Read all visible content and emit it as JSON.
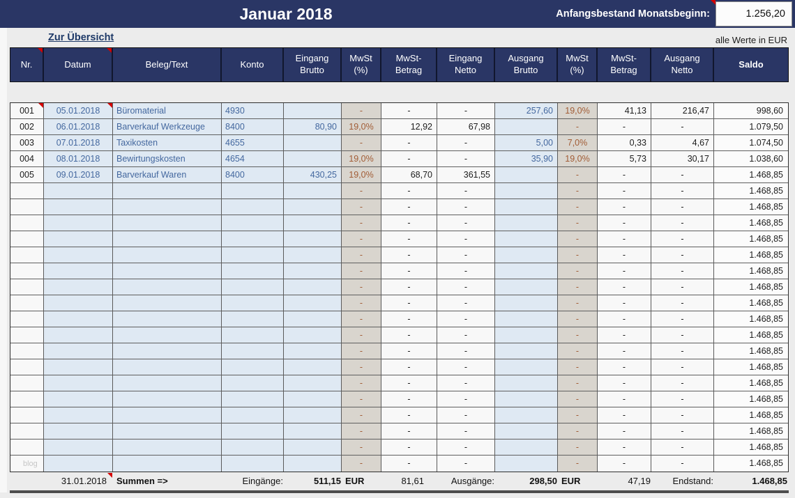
{
  "topbar": {
    "title": "Januar 2018",
    "label": "Anfangsbestand Monatsbeginn:",
    "value": "1.256,20"
  },
  "subheader": {
    "link": "Zur Übersicht",
    "note": "alle Werte in EUR"
  },
  "table": {
    "columns": [
      {
        "key": "nr",
        "label": "Nr."
      },
      {
        "key": "datum",
        "label": "Datum"
      },
      {
        "key": "beleg",
        "label": "Beleg/Text"
      },
      {
        "key": "konto",
        "label": "Konto"
      },
      {
        "key": "eingang_brutto",
        "label": "Eingang\nBrutto"
      },
      {
        "key": "mwst_ein",
        "label": "MwSt\n(%)"
      },
      {
        "key": "mwst_betrag_ein",
        "label": "MwSt-\nBetrag"
      },
      {
        "key": "eingang_netto",
        "label": "Eingang\nNetto"
      },
      {
        "key": "ausgang_brutto",
        "label": "Ausgang\nBrutto"
      },
      {
        "key": "mwst_aus",
        "label": "MwSt\n(%)"
      },
      {
        "key": "mwst_betrag_aus",
        "label": "MwSt-\nBetrag"
      },
      {
        "key": "ausgang_netto",
        "label": "Ausgang\nNetto"
      },
      {
        "key": "saldo",
        "label": "Saldo"
      }
    ],
    "rows": [
      {
        "nr": "001",
        "datum": "05.01.2018",
        "beleg": "Büromaterial",
        "konto": "4930",
        "eingang_brutto": "",
        "mwst_ein": "-",
        "mwst_betrag_ein": "-",
        "eingang_netto": "-",
        "ausgang_brutto": "257,60",
        "mwst_aus": "19,0%",
        "mwst_betrag_aus": "41,13",
        "ausgang_netto": "216,47",
        "saldo": "998,60"
      },
      {
        "nr": "002",
        "datum": "06.01.2018",
        "beleg": "Barverkauf Werkzeuge",
        "konto": "8400",
        "eingang_brutto": "80,90",
        "mwst_ein": "19,0%",
        "mwst_betrag_ein": "12,92",
        "eingang_netto": "67,98",
        "ausgang_brutto": "",
        "mwst_aus": "-",
        "mwst_betrag_aus": "-",
        "ausgang_netto": "-",
        "saldo": "1.079,50"
      },
      {
        "nr": "003",
        "datum": "07.01.2018",
        "beleg": "Taxikosten",
        "konto": "4655",
        "eingang_brutto": "",
        "mwst_ein": "-",
        "mwst_betrag_ein": "-",
        "eingang_netto": "-",
        "ausgang_brutto": "5,00",
        "mwst_aus": "7,0%",
        "mwst_betrag_aus": "0,33",
        "ausgang_netto": "4,67",
        "saldo": "1.074,50"
      },
      {
        "nr": "004",
        "datum": "08.01.2018",
        "beleg": "Bewirtungskosten",
        "konto": "4654",
        "eingang_brutto": "",
        "mwst_ein": "19,0%",
        "mwst_betrag_ein": "-",
        "eingang_netto": "-",
        "ausgang_brutto": "35,90",
        "mwst_aus": "19,0%",
        "mwst_betrag_aus": "5,73",
        "ausgang_netto": "30,17",
        "saldo": "1.038,60"
      },
      {
        "nr": "005",
        "datum": "09.01.2018",
        "beleg": "Barverkauf Waren",
        "konto": "8400",
        "eingang_brutto": "430,25",
        "mwst_ein": "19,0%",
        "mwst_betrag_ein": "68,70",
        "eingang_netto": "361,55",
        "ausgang_brutto": "",
        "mwst_aus": "-",
        "mwst_betrag_aus": "-",
        "ausgang_netto": "-",
        "saldo": "1.468,85"
      },
      {
        "nr": "",
        "datum": "",
        "beleg": "",
        "konto": "",
        "eingang_brutto": "",
        "mwst_ein": "-",
        "mwst_betrag_ein": "-",
        "eingang_netto": "-",
        "ausgang_brutto": "",
        "mwst_aus": "-",
        "mwst_betrag_aus": "-",
        "ausgang_netto": "-",
        "saldo": "1.468,85"
      },
      {
        "nr": "",
        "datum": "",
        "beleg": "",
        "konto": "",
        "eingang_brutto": "",
        "mwst_ein": "-",
        "mwst_betrag_ein": "-",
        "eingang_netto": "-",
        "ausgang_brutto": "",
        "mwst_aus": "-",
        "mwst_betrag_aus": "-",
        "ausgang_netto": "-",
        "saldo": "1.468,85"
      },
      {
        "nr": "",
        "datum": "",
        "beleg": "",
        "konto": "",
        "eingang_brutto": "",
        "mwst_ein": "-",
        "mwst_betrag_ein": "-",
        "eingang_netto": "-",
        "ausgang_brutto": "",
        "mwst_aus": "-",
        "mwst_betrag_aus": "-",
        "ausgang_netto": "-",
        "saldo": "1.468,85"
      },
      {
        "nr": "",
        "datum": "",
        "beleg": "",
        "konto": "",
        "eingang_brutto": "",
        "mwst_ein": "-",
        "mwst_betrag_ein": "-",
        "eingang_netto": "-",
        "ausgang_brutto": "",
        "mwst_aus": "-",
        "mwst_betrag_aus": "-",
        "ausgang_netto": "-",
        "saldo": "1.468,85"
      },
      {
        "nr": "",
        "datum": "",
        "beleg": "",
        "konto": "",
        "eingang_brutto": "",
        "mwst_ein": "-",
        "mwst_betrag_ein": "-",
        "eingang_netto": "-",
        "ausgang_brutto": "",
        "mwst_aus": "-",
        "mwst_betrag_aus": "-",
        "ausgang_netto": "-",
        "saldo": "1.468,85"
      },
      {
        "nr": "",
        "datum": "",
        "beleg": "",
        "konto": "",
        "eingang_brutto": "",
        "mwst_ein": "-",
        "mwst_betrag_ein": "-",
        "eingang_netto": "-",
        "ausgang_brutto": "",
        "mwst_aus": "-",
        "mwst_betrag_aus": "-",
        "ausgang_netto": "-",
        "saldo": "1.468,85"
      },
      {
        "nr": "",
        "datum": "",
        "beleg": "",
        "konto": "",
        "eingang_brutto": "",
        "mwst_ein": "-",
        "mwst_betrag_ein": "-",
        "eingang_netto": "-",
        "ausgang_brutto": "",
        "mwst_aus": "-",
        "mwst_betrag_aus": "-",
        "ausgang_netto": "-",
        "saldo": "1.468,85"
      },
      {
        "nr": "",
        "datum": "",
        "beleg": "",
        "konto": "",
        "eingang_brutto": "",
        "mwst_ein": "-",
        "mwst_betrag_ein": "-",
        "eingang_netto": "-",
        "ausgang_brutto": "",
        "mwst_aus": "-",
        "mwst_betrag_aus": "-",
        "ausgang_netto": "-",
        "saldo": "1.468,85"
      },
      {
        "nr": "",
        "datum": "",
        "beleg": "",
        "konto": "",
        "eingang_brutto": "",
        "mwst_ein": "-",
        "mwst_betrag_ein": "-",
        "eingang_netto": "-",
        "ausgang_brutto": "",
        "mwst_aus": "-",
        "mwst_betrag_aus": "-",
        "ausgang_netto": "-",
        "saldo": "1.468,85"
      },
      {
        "nr": "",
        "datum": "",
        "beleg": "",
        "konto": "",
        "eingang_brutto": "",
        "mwst_ein": "-",
        "mwst_betrag_ein": "-",
        "eingang_netto": "-",
        "ausgang_brutto": "",
        "mwst_aus": "-",
        "mwst_betrag_aus": "-",
        "ausgang_netto": "-",
        "saldo": "1.468,85"
      },
      {
        "nr": "",
        "datum": "",
        "beleg": "",
        "konto": "",
        "eingang_brutto": "",
        "mwst_ein": "-",
        "mwst_betrag_ein": "-",
        "eingang_netto": "-",
        "ausgang_brutto": "",
        "mwst_aus": "-",
        "mwst_betrag_aus": "-",
        "ausgang_netto": "-",
        "saldo": "1.468,85"
      },
      {
        "nr": "",
        "datum": "",
        "beleg": "",
        "konto": "",
        "eingang_brutto": "",
        "mwst_ein": "-",
        "mwst_betrag_ein": "-",
        "eingang_netto": "-",
        "ausgang_brutto": "",
        "mwst_aus": "-",
        "mwst_betrag_aus": "-",
        "ausgang_netto": "-",
        "saldo": "1.468,85"
      },
      {
        "nr": "",
        "datum": "",
        "beleg": "",
        "konto": "",
        "eingang_brutto": "",
        "mwst_ein": "-",
        "mwst_betrag_ein": "-",
        "eingang_netto": "-",
        "ausgang_brutto": "",
        "mwst_aus": "-",
        "mwst_betrag_aus": "-",
        "ausgang_netto": "-",
        "saldo": "1.468,85"
      },
      {
        "nr": "",
        "datum": "",
        "beleg": "",
        "konto": "",
        "eingang_brutto": "",
        "mwst_ein": "-",
        "mwst_betrag_ein": "-",
        "eingang_netto": "-",
        "ausgang_brutto": "",
        "mwst_aus": "-",
        "mwst_betrag_aus": "-",
        "ausgang_netto": "-",
        "saldo": "1.468,85"
      },
      {
        "nr": "",
        "datum": "",
        "beleg": "",
        "konto": "",
        "eingang_brutto": "",
        "mwst_ein": "-",
        "mwst_betrag_ein": "-",
        "eingang_netto": "-",
        "ausgang_brutto": "",
        "mwst_aus": "-",
        "mwst_betrag_aus": "-",
        "ausgang_netto": "-",
        "saldo": "1.468,85"
      },
      {
        "nr": "",
        "datum": "",
        "beleg": "",
        "konto": "",
        "eingang_brutto": "",
        "mwst_ein": "-",
        "mwst_betrag_ein": "-",
        "eingang_netto": "-",
        "ausgang_brutto": "",
        "mwst_aus": "-",
        "mwst_betrag_aus": "-",
        "ausgang_netto": "-",
        "saldo": "1.468,85"
      },
      {
        "nr": "",
        "datum": "",
        "beleg": "",
        "konto": "",
        "eingang_brutto": "",
        "mwst_ein": "-",
        "mwst_betrag_ein": "-",
        "eingang_netto": "-",
        "ausgang_brutto": "",
        "mwst_aus": "-",
        "mwst_betrag_aus": "-",
        "ausgang_netto": "-",
        "saldo": "1.468,85"
      },
      {
        "nr": "",
        "datum": "",
        "beleg": "",
        "konto": "",
        "eingang_brutto": "",
        "mwst_ein": "-",
        "mwst_betrag_ein": "-",
        "eingang_netto": "-",
        "ausgang_brutto": "",
        "mwst_aus": "-",
        "mwst_betrag_aus": "-",
        "ausgang_netto": "-",
        "saldo": "1.468,85"
      }
    ]
  },
  "summary": {
    "datum": "31.01.2018",
    "summen_label": "Summen =>",
    "eingaenge_label": "Eingänge:",
    "eingaenge_value": "511,15",
    "eingaenge_currency": "EUR",
    "eingang_mwst_sum": "81,61",
    "ausgaenge_label": "Ausgänge:",
    "ausgaenge_value": "298,50",
    "ausgaenge_currency": "EUR",
    "ausgang_mwst_sum": "47,19",
    "endstand_label": "Endstand:",
    "endstand_value": "1.468,85"
  },
  "comment_markers": [
    "topbar-label",
    "header-nr",
    "header-datum",
    "row0-nr",
    "row0-datum",
    "summary-datum"
  ],
  "watermark": "blog",
  "colors": {
    "navy": "#2a3665",
    "input_cell_blue": "#dfe9f3",
    "input_text_blue": "#44689f",
    "mwst_cell_grey": "#d9d5ce",
    "mwst_text_brown": "#a15c35",
    "comment_marker_red": "#d40000",
    "page_background": "#ececec"
  }
}
